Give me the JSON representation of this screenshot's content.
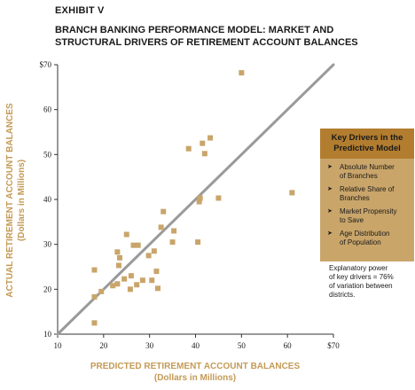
{
  "exhibit": "EXHIBIT V",
  "title_line1": "BRANCH BANKING PERFORMANCE MODEL: MARKET AND",
  "title_line2": "STRUCTURAL DRIVERS OF RETIREMENT ACCOUNT BALANCES",
  "drivers_box": {
    "heading_line1": "Key Drivers in the",
    "heading_line2": "Predictive Model",
    "items": [
      {
        "line1": "Absolute Number",
        "line2": "of Branches"
      },
      {
        "line1": "Relative Share of",
        "line2": "Branches"
      },
      {
        "line1": "Market Propensity",
        "line2": "to Save"
      },
      {
        "line1": "Age Distribution",
        "line2": "of Population"
      }
    ]
  },
  "note": {
    "line1": "Explanatory power",
    "line2": "of key drivers = 76%",
    "line3": "of variation between",
    "line4": "districts."
  },
  "colors": {
    "marker": "#c9a56a",
    "line": "#9a9a9a",
    "label": "#c49a55",
    "box": "#c9a56a",
    "box_head": "#b27d2f"
  },
  "chart_data": {
    "type": "scatter",
    "title": "BRANCH BANKING PERFORMANCE MODEL: MARKET AND STRUCTURAL DRIVERS OF RETIREMENT ACCOUNT BALANCES",
    "xlabel_line1": "PREDICTED RETIREMENT ACCOUNT BALANCES",
    "xlabel_line2": "(Dollars in Millions)",
    "ylabel_line1": "ACTUAL RETIREMENT ACCOUNT BALANCES",
    "ylabel_line2": "(Dollars in Millions)",
    "xlim": [
      10,
      70
    ],
    "ylim": [
      10,
      70
    ],
    "x_ticks": [
      "10",
      "20",
      "30",
      "40",
      "50",
      "60",
      "$70"
    ],
    "y_ticks": [
      "10",
      "20",
      "30",
      "40",
      "50",
      "60",
      "$70"
    ],
    "grid": false,
    "reference_line": {
      "from": [
        10,
        10
      ],
      "to": [
        70,
        70
      ]
    },
    "points": [
      {
        "x": 18,
        "y": 12.5
      },
      {
        "x": 18,
        "y": 18.3
      },
      {
        "x": 18,
        "y": 24.3
      },
      {
        "x": 19.5,
        "y": 19.5
      },
      {
        "x": 22,
        "y": 20.8
      },
      {
        "x": 23,
        "y": 21.2
      },
      {
        "x": 23.3,
        "y": 25.3
      },
      {
        "x": 23,
        "y": 28.3
      },
      {
        "x": 23.5,
        "y": 27
      },
      {
        "x": 24.5,
        "y": 22.3
      },
      {
        "x": 25,
        "y": 32.2
      },
      {
        "x": 25.8,
        "y": 20
      },
      {
        "x": 26,
        "y": 23
      },
      {
        "x": 26.5,
        "y": 29.8
      },
      {
        "x": 27.2,
        "y": 21
      },
      {
        "x": 27.5,
        "y": 29.8
      },
      {
        "x": 28.5,
        "y": 22
      },
      {
        "x": 29.8,
        "y": 27.5
      },
      {
        "x": 30.5,
        "y": 22
      },
      {
        "x": 31,
        "y": 28.5
      },
      {
        "x": 31.5,
        "y": 24
      },
      {
        "x": 31.8,
        "y": 20.2
      },
      {
        "x": 32.5,
        "y": 33.8
      },
      {
        "x": 33,
        "y": 37.3
      },
      {
        "x": 35,
        "y": 30.5
      },
      {
        "x": 35.3,
        "y": 33
      },
      {
        "x": 38.5,
        "y": 51.3
      },
      {
        "x": 40.5,
        "y": 30.5
      },
      {
        "x": 40.8,
        "y": 39.5
      },
      {
        "x": 41,
        "y": 40.3
      },
      {
        "x": 41.5,
        "y": 52.5
      },
      {
        "x": 42,
        "y": 50.2
      },
      {
        "x": 43.2,
        "y": 53.7
      },
      {
        "x": 45,
        "y": 40.3
      },
      {
        "x": 50,
        "y": 68.2
      },
      {
        "x": 61,
        "y": 41.5
      }
    ]
  }
}
